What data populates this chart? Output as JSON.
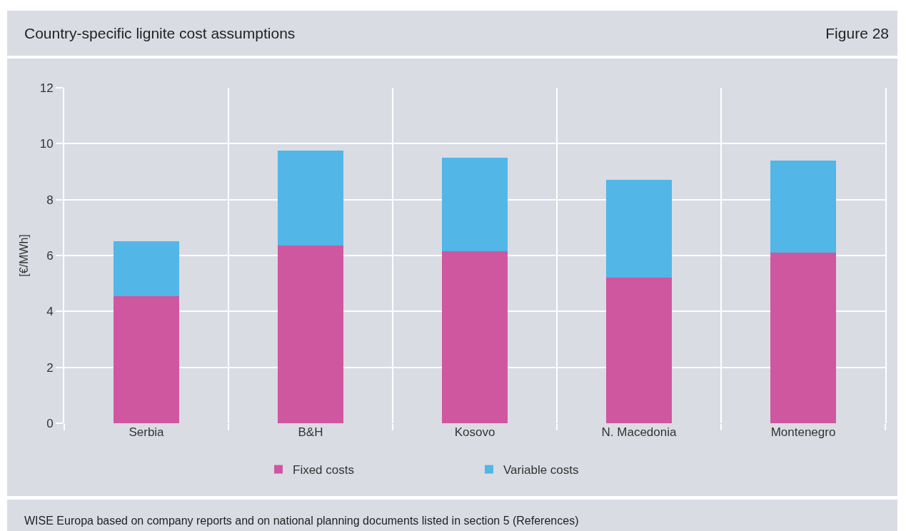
{
  "chart_data": {
    "type": "bar",
    "title": "Country-specific lignite cost assumptions",
    "annotations": [
      "Figure 28",
      "WISE Europa based on company reports and on national planning documents listed in section 5 (References)"
    ],
    "ylabel": "[€/MWh]",
    "categories": [
      "Serbia",
      "B&H",
      "Kosovo",
      "N. Macedonia",
      "Montenegro"
    ],
    "series": [
      {
        "name": "Fixed costs",
        "color": "#cf57a0",
        "values": [
          4.55,
          6.35,
          6.15,
          5.2,
          6.1
        ]
      },
      {
        "name": "Variable costs",
        "color": "#52b6e6",
        "values": [
          1.95,
          3.4,
          3.35,
          3.5,
          3.3
        ]
      }
    ],
    "stacked": true,
    "ylim": [
      0,
      12
    ],
    "yticks": [
      0,
      2,
      4,
      6,
      8,
      10,
      12
    ],
    "grid": true,
    "legend": "bottom"
  }
}
